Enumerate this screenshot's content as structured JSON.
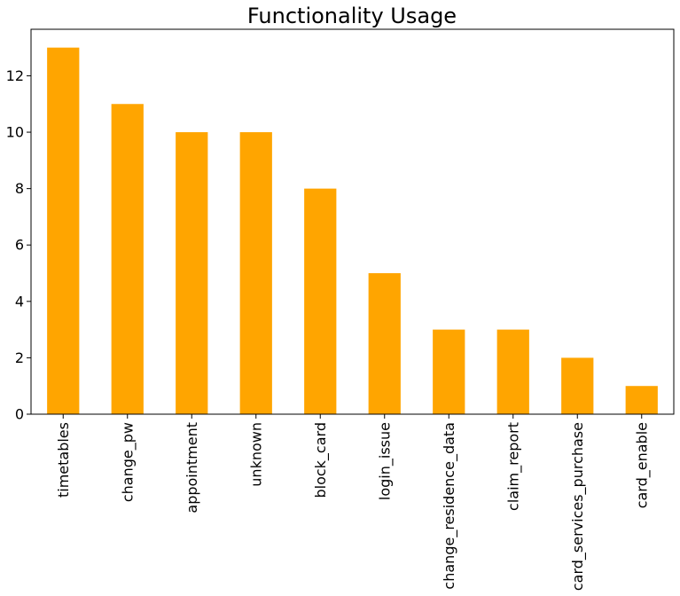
{
  "chart_data": {
    "type": "bar",
    "title": "Functionality Usage",
    "xlabel": "",
    "ylabel": "",
    "categories": [
      "timetables",
      "change_pw",
      "appointment",
      "unknown",
      "block_card",
      "login_issue",
      "change_residence_data",
      "claim_report",
      "card_services_purchase",
      "card_enable"
    ],
    "values": [
      13,
      11,
      10,
      10,
      8,
      5,
      3,
      3,
      2,
      1
    ],
    "ylim": [
      0,
      13.65
    ],
    "yticks": [
      0,
      2,
      4,
      6,
      8,
      10,
      12
    ],
    "bar_color": "#ffa500",
    "grid": false,
    "legend": "none"
  }
}
